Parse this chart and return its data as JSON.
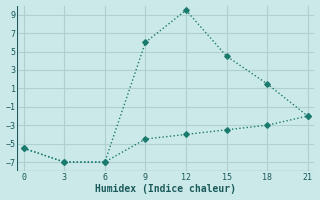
{
  "line1_x": [
    0,
    3,
    6,
    9,
    12,
    15,
    18,
    21
  ],
  "line1_y": [
    -5.5,
    -7,
    -7,
    6,
    9.5,
    4.5,
    1.5,
    -2
  ],
  "line2_x": [
    0,
    3,
    6,
    9,
    12,
    15,
    18,
    21
  ],
  "line2_y": [
    -5.5,
    -7,
    -7,
    -4.5,
    -4,
    -3.5,
    -3,
    -2
  ],
  "line_color": "#1a7a6e",
  "bg_color": "#cce9e9",
  "grid_color": "#b0d0d0",
  "xlabel": "Humidex (Indice chaleur)",
  "xlim": [
    -0.5,
    21.5
  ],
  "ylim": [
    -8,
    10
  ],
  "xticks": [
    0,
    3,
    6,
    9,
    12,
    15,
    18,
    21
  ],
  "yticks": [
    -7,
    -5,
    -3,
    -1,
    1,
    3,
    5,
    7,
    9
  ],
  "marker": "D",
  "markersize": 2.8,
  "linewidth": 1.0,
  "fontsize_ticks": 6,
  "fontsize_xlabel": 7
}
